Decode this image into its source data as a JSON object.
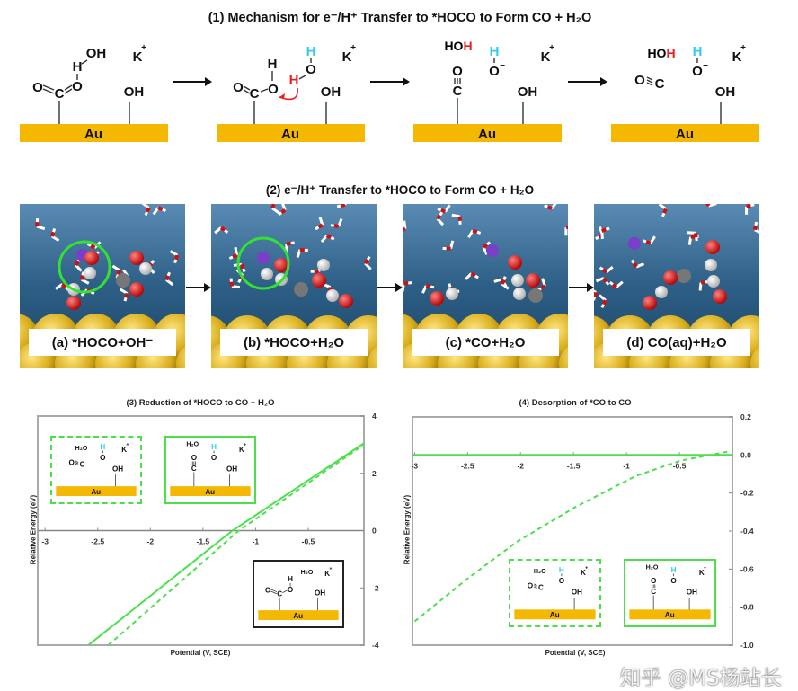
{
  "mechanism": {
    "title": "(1) Mechanism for e⁻/H⁺ Transfer to *HOCO to Form CO + H₂O"
  },
  "chem": {
    "O": "O",
    "C": "C",
    "H": "H",
    "OH": "OH",
    "K": "K",
    "plus": "+",
    "minus": "−",
    "Au": "Au",
    "HO": "HO",
    "H2O": "H₂O"
  },
  "colors": {
    "gold": "#f5b800",
    "proton_red": "#e82020",
    "proton_cyan": "#33ccee",
    "series_green": "#4be04b",
    "potassium": "#7a3fc8"
  },
  "snapshots": {
    "title": "(2) e⁻/H⁺ Transfer to *HOCO to Form CO + H₂O",
    "labels": [
      "(a) *HOCO+OH⁻",
      "(b) *HOCO+H₂O",
      "(c) *CO+H₂O",
      "(d) CO(aq)+H₂O"
    ]
  },
  "chart_data": [
    {
      "type": "line",
      "title": "(3) Reduction of *HOCO to CO + H₂O",
      "xlabel": "Potential (V, SCE)",
      "ylabel": "Relative Energy (eV)",
      "xlim": [
        -3.07,
        0.03
      ],
      "ylim": [
        -4,
        4
      ],
      "xticks": [
        -3,
        -2.5,
        -2,
        -1.5,
        -1,
        -0.5
      ],
      "yticks": [
        4,
        2,
        0,
        -2,
        -4
      ],
      "yaxis_side": "right",
      "series": [
        {
          "style": "solid",
          "color": "#4be04b",
          "x": [
            -2.59,
            -1.22,
            0.03
          ],
          "y": [
            -4,
            0,
            3.05
          ]
        },
        {
          "style": "dashed",
          "color": "#4be04b",
          "x": [
            -2.4,
            -1.16,
            0.03
          ],
          "y": [
            -4,
            0,
            3.0
          ]
        }
      ],
      "insets": [
        "dashed: O≡C + H₂O + OH⁻",
        "solid: *CO + H₂O",
        "black: *HOCO + H₂O"
      ]
    },
    {
      "type": "line",
      "title": "(4) Desorption of *CO to CO",
      "xlabel": "Potential (V, SCE)",
      "ylabel": "Relative Energy (eV)",
      "xlim": [
        -3.02,
        0.0
      ],
      "ylim": [
        -1.0,
        0.2
      ],
      "xticks": [
        -3,
        -2.5,
        -2,
        -1.5,
        -1,
        -0.5
      ],
      "yticks": [
        0.2,
        0.0,
        -0.2,
        -0.4,
        -0.6,
        -0.8,
        -1.0
      ],
      "yaxis_side": "right",
      "series": [
        {
          "style": "solid",
          "color": "#4be04b",
          "x": [
            -3.02,
            0.0
          ],
          "y": [
            0.0,
            0.0
          ]
        },
        {
          "style": "dashed",
          "color": "#4be04b",
          "x": [
            -3.0,
            -2.5,
            -2.03,
            -1.47,
            -0.91,
            -0.49,
            -0.02
          ],
          "y": [
            -0.875,
            -0.65,
            -0.455,
            -0.27,
            -0.11,
            -0.03,
            0.02
          ]
        }
      ]
    }
  ],
  "watermark": "知乎 @MS杨站长"
}
